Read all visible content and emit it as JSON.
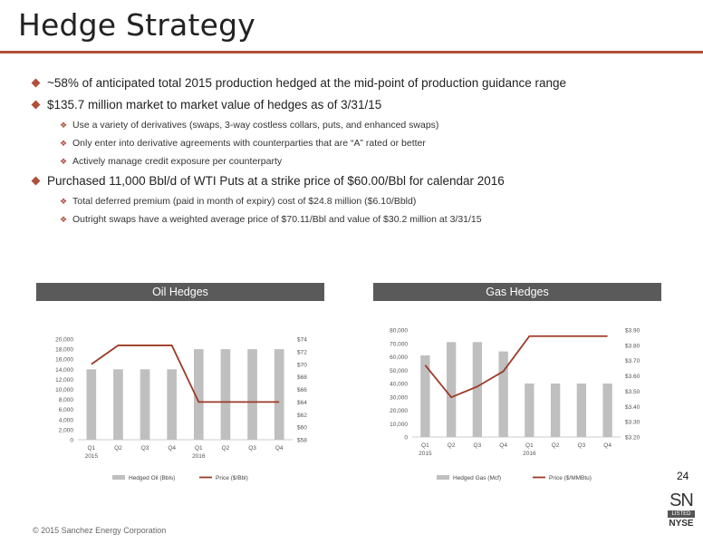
{
  "title": "Hedge Strategy",
  "bullets": [
    {
      "text": "~58% of anticipated total 2015 production hedged at the mid-point of production guidance range",
      "subs": []
    },
    {
      "text": "$135.7 million market to market value of hedges as of 3/31/15",
      "subs": [
        "Use a variety of derivatives (swaps, 3-way costless collars, puts, and enhanced swaps)",
        "Only enter into derivative agreements with counterparties that are “A” rated or better",
        "Actively manage credit exposure per counterparty"
      ]
    },
    {
      "text": "Purchased 11,000 Bbl/d of WTI Puts at a strike price of $60.00/Bbl for calendar 2016",
      "subs": [
        "Total deferred premium (paid in month of expiry) cost of $24.8 million ($6.10/Bbld)",
        "Outright swaps have a weighted average price of $70.11/Bbl and value of $30.2 million at 3/31/15"
      ]
    }
  ],
  "colors": {
    "accent": "#b0503a",
    "bar": "#bfbfbf",
    "line": "#9c3a26",
    "header": "#5a5a5a"
  },
  "chart_data": [
    {
      "type": "bar",
      "title": "Oil Hedges",
      "categories": [
        "Q1",
        "Q2",
        "Q3",
        "Q4",
        "Q1",
        "Q2",
        "Q3",
        "Q4"
      ],
      "year_labels": [
        "2015",
        "",
        "",
        "",
        "2016",
        "",
        "",
        ""
      ],
      "series": [
        {
          "name": "Hedged Oil (Bbls)",
          "type": "bar",
          "axis": "left",
          "values": [
            14000,
            14000,
            14000,
            14000,
            18000,
            18000,
            18000,
            18000
          ]
        },
        {
          "name": "Price ($/Bbl)",
          "type": "line",
          "axis": "right",
          "values": [
            70,
            73,
            73,
            73,
            64,
            64,
            64,
            64
          ]
        }
      ],
      "ylim": [
        0,
        20000
      ],
      "yticks": [
        "0",
        "2,000",
        "4,000",
        "6,000",
        "8,000",
        "10,000",
        "12,000",
        "14,000",
        "16,000",
        "18,000",
        "20,000"
      ],
      "y2lim": [
        58,
        74
      ],
      "y2ticks": [
        "$58",
        "$60",
        "$62",
        "$64",
        "$66",
        "$68",
        "$70",
        "$72",
        "$74"
      ],
      "legend": "bottom"
    },
    {
      "type": "bar",
      "title": "Gas Hedges",
      "categories": [
        "Q1",
        "Q2",
        "Q3",
        "Q4",
        "Q1",
        "Q2",
        "Q3",
        "Q4"
      ],
      "year_labels": [
        "2015",
        "",
        "",
        "",
        "2016",
        "",
        "",
        ""
      ],
      "series": [
        {
          "name": "Hedged Gas (Mcf)",
          "type": "bar",
          "axis": "left",
          "values": [
            61000,
            71000,
            71000,
            64000,
            40000,
            40000,
            40000,
            40000
          ]
        },
        {
          "name": "Price ($/MMBtu)",
          "type": "line",
          "axis": "right",
          "values": [
            3.67,
            3.46,
            3.53,
            3.63,
            3.86,
            3.86,
            3.86,
            3.86
          ]
        }
      ],
      "ylim": [
        0,
        80000
      ],
      "yticks": [
        "0",
        "10,000",
        "20,000",
        "30,000",
        "40,000",
        "50,000",
        "60,000",
        "70,000",
        "80,000"
      ],
      "y2lim": [
        3.2,
        3.9
      ],
      "y2ticks": [
        "$3.20",
        "$3.30",
        "$3.40",
        "$3.50",
        "$3.60",
        "$3.70",
        "$3.80",
        "$3.90"
      ],
      "legend": "bottom"
    }
  ],
  "page_number": "24",
  "logo": {
    "top": "SN",
    "middle": "LISTED",
    "bottom": "NYSE"
  },
  "footer": "© 2015 Sanchez Energy Corporation"
}
